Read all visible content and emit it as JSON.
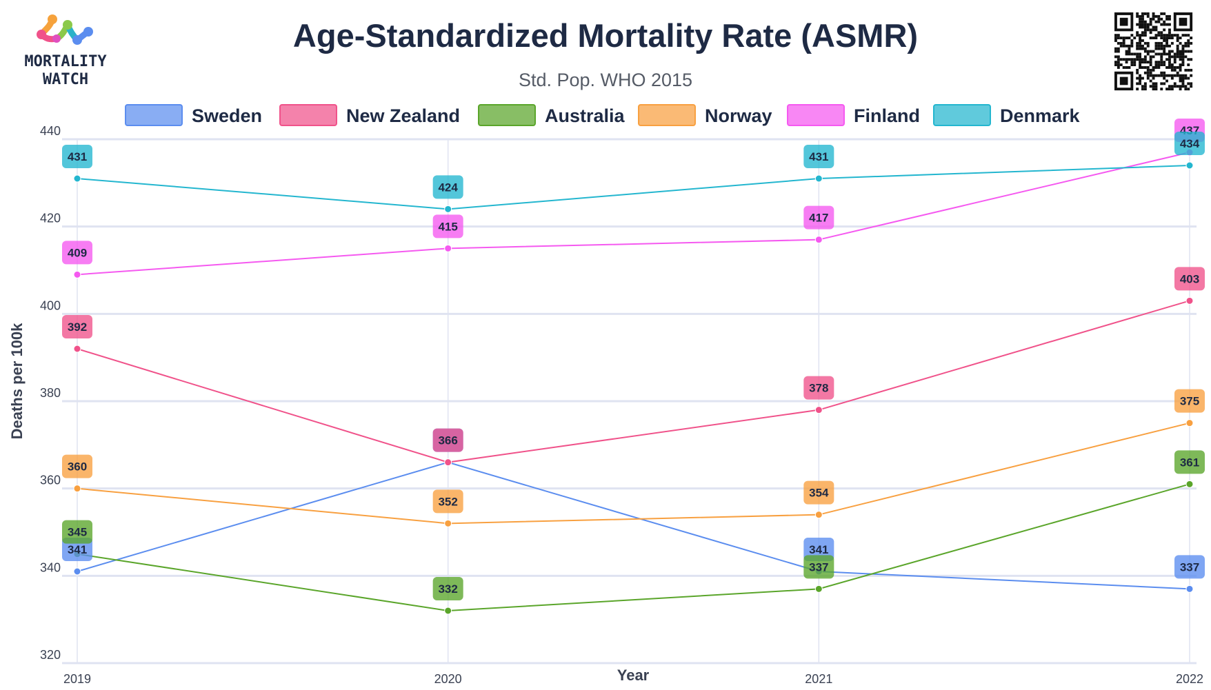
{
  "brand": {
    "line1": "MORTALITY",
    "line2": "WATCH"
  },
  "chart_data": {
    "type": "line",
    "title": "Age-Standardized Mortality Rate (ASMR)",
    "subtitle": "Std. Pop. WHO 2015",
    "xlabel": "Year",
    "ylabel": "Deaths per 100k",
    "x": [
      "2019",
      "2020",
      "2021",
      "2022"
    ],
    "ylim": [
      320,
      440
    ],
    "yticks": [
      320,
      340,
      360,
      380,
      400,
      420,
      440
    ],
    "grid": true,
    "legend_position": "top",
    "series": [
      {
        "name": "Sweden",
        "color": "#5b8def",
        "values": [
          341,
          366,
          341,
          337
        ]
      },
      {
        "name": "New Zealand",
        "color": "#f0528a",
        "values": [
          392,
          366,
          378,
          403
        ]
      },
      {
        "name": "Australia",
        "color": "#5aa52a",
        "values": [
          345,
          332,
          337,
          361
        ]
      },
      {
        "name": "Norway",
        "color": "#f8a040",
        "values": [
          360,
          352,
          354,
          375
        ]
      },
      {
        "name": "Finland",
        "color": "#f559f0",
        "values": [
          409,
          415,
          417,
          437
        ]
      },
      {
        "name": "Denmark",
        "color": "#23b6cf",
        "values": [
          431,
          424,
          431,
          434
        ]
      }
    ]
  }
}
